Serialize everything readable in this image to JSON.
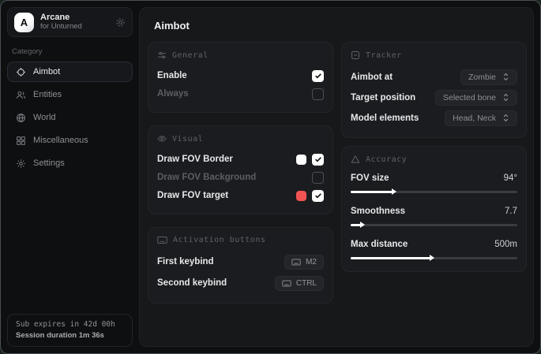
{
  "app": {
    "name": "Arcane",
    "subtitle": "for Unturned",
    "logo_letter": "A"
  },
  "sidebar": {
    "category_label": "Category",
    "items": [
      {
        "label": "Aimbot",
        "active": true
      },
      {
        "label": "Entities",
        "active": false
      },
      {
        "label": "World",
        "active": false
      },
      {
        "label": "Miscellaneous",
        "active": false
      },
      {
        "label": "Settings",
        "active": false
      }
    ],
    "status": {
      "line1": "Sub expires in 42d 00h",
      "line2": "Session duration 1m 36s"
    }
  },
  "page": {
    "title": "Aimbot"
  },
  "cards": {
    "general": {
      "title": "General",
      "rows": [
        {
          "label": "Enable",
          "checked": true
        },
        {
          "label": "Always",
          "checked": false,
          "disabled": true
        }
      ]
    },
    "visual": {
      "title": "Visual",
      "rows": [
        {
          "label": "Draw FOV Border",
          "checked": true,
          "swatch": "#ffffff"
        },
        {
          "label": "Draw FOV Background",
          "checked": false,
          "disabled": true
        },
        {
          "label": "Draw FOV target",
          "checked": true,
          "swatch": "#f05352"
        }
      ]
    },
    "activation": {
      "title": "Activation buttons",
      "rows": [
        {
          "label": "First keybind",
          "key": "M2"
        },
        {
          "label": "Second keybind",
          "key": "CTRL"
        }
      ]
    },
    "tracker": {
      "title": "Tracker",
      "rows": [
        {
          "label": "Aimbot at",
          "value": "Zombie"
        },
        {
          "label": "Target position",
          "value": "Selected bone"
        },
        {
          "label": "Model elements",
          "value": "Head, Neck"
        }
      ]
    },
    "accuracy": {
      "title": "Accuracy",
      "rows": [
        {
          "label": "FOV size",
          "value": "94°",
          "percent": 26
        },
        {
          "label": "Smoothness",
          "value": "7.7",
          "percent": 7
        },
        {
          "label": "Max distance",
          "value": "500m",
          "percent": 49
        }
      ]
    }
  },
  "colors": {
    "accent_red": "#f05352",
    "swatch_white": "#ffffff",
    "card_bg": "#1b1c1f",
    "window_bg": "#0e0f11",
    "main_bg": "#17181a"
  }
}
